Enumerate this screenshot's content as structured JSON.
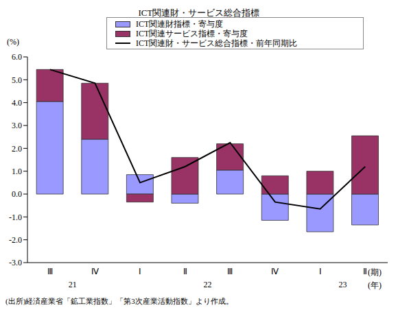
{
  "chart_data": {
    "type": "bar",
    "title": "ICT関連財・サービス総合指標",
    "categories": [
      "Ⅲ",
      "Ⅳ",
      "Ⅰ",
      "Ⅱ",
      "Ⅲ",
      "Ⅳ",
      "Ⅰ",
      "Ⅱ"
    ],
    "year_groups": [
      {
        "label": "21",
        "count": 2
      },
      {
        "label": "22",
        "count": 4
      },
      {
        "label": "23",
        "count": 2
      }
    ],
    "x_label": "(期)",
    "year_label": "(年)",
    "y_label": "(%)",
    "ylim": [
      -3,
      6
    ],
    "yticks": [
      {
        "value": -3,
        "label": "-3.0"
      },
      {
        "value": -2,
        "label": "-2.0"
      },
      {
        "value": -1,
        "label": "-1.0"
      },
      {
        "value": 0,
        "label": "0.0"
      },
      {
        "value": 1,
        "label": "1.0"
      },
      {
        "value": 2,
        "label": "2.0"
      },
      {
        "value": 3,
        "label": "3.0"
      },
      {
        "value": 4,
        "label": "4.0"
      },
      {
        "value": 5,
        "label": "5.0"
      },
      {
        "value": 6,
        "label": "6.0"
      }
    ],
    "stacked": true,
    "grid": false,
    "legend": "top",
    "series": [
      {
        "name": "ICT関連財指標・寄与度",
        "type": "bar",
        "color": "#9999ff",
        "values": [
          4.05,
          2.4,
          0.85,
          -0.4,
          1.05,
          -1.15,
          -1.65,
          -1.35
        ]
      },
      {
        "name": "ICT関連サービス指標・寄与度",
        "type": "bar",
        "color": "#993366",
        "values": [
          1.4,
          2.45,
          -0.35,
          1.6,
          1.15,
          0.8,
          1.0,
          2.55
        ]
      },
      {
        "name": "ICT関連財・サービス総合指標・前年同期比",
        "type": "line",
        "color": "#000000",
        "values": [
          5.45,
          4.85,
          0.5,
          1.2,
          2.25,
          -0.35,
          -0.65,
          1.2
        ]
      }
    ],
    "source": "(出所)経済産業省「鉱工業指数」「第3次産業活動指数」より作成。"
  }
}
